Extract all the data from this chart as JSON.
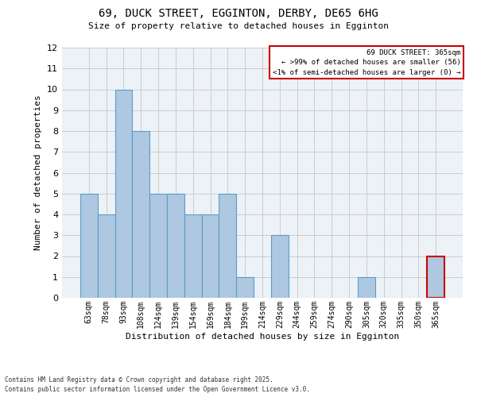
{
  "title_line1": "69, DUCK STREET, EGGINTON, DERBY, DE65 6HG",
  "title_line2": "Size of property relative to detached houses in Egginton",
  "xlabel": "Distribution of detached houses by size in Egginton",
  "ylabel": "Number of detached properties",
  "categories": [
    "63sqm",
    "78sqm",
    "93sqm",
    "108sqm",
    "124sqm",
    "139sqm",
    "154sqm",
    "169sqm",
    "184sqm",
    "199sqm",
    "214sqm",
    "229sqm",
    "244sqm",
    "259sqm",
    "274sqm",
    "290sqm",
    "305sqm",
    "320sqm",
    "335sqm",
    "350sqm",
    "365sqm"
  ],
  "values": [
    5,
    4,
    10,
    8,
    5,
    5,
    4,
    4,
    5,
    1,
    0,
    3,
    0,
    0,
    0,
    0,
    1,
    0,
    0,
    0,
    2
  ],
  "bar_color": "#adc8e0",
  "bar_edge_color": "#5b9dc9",
  "highlight_bar_index": 20,
  "highlight_bar_edge_color": "#cc0000",
  "ylim": [
    0,
    12
  ],
  "yticks": [
    0,
    1,
    2,
    3,
    4,
    5,
    6,
    7,
    8,
    9,
    10,
    11,
    12
  ],
  "annotation_text_line1": "69 DUCK STREET: 365sqm",
  "annotation_text_line2": "← >99% of detached houses are smaller (56)",
  "annotation_text_line3": "<1% of semi-detached houses are larger (0) →",
  "grid_color": "#cccccc",
  "background_color": "#edf2f7",
  "footer_text": "Contains HM Land Registry data © Crown copyright and database right 2025.\nContains public sector information licensed under the Open Government Licence v3.0."
}
